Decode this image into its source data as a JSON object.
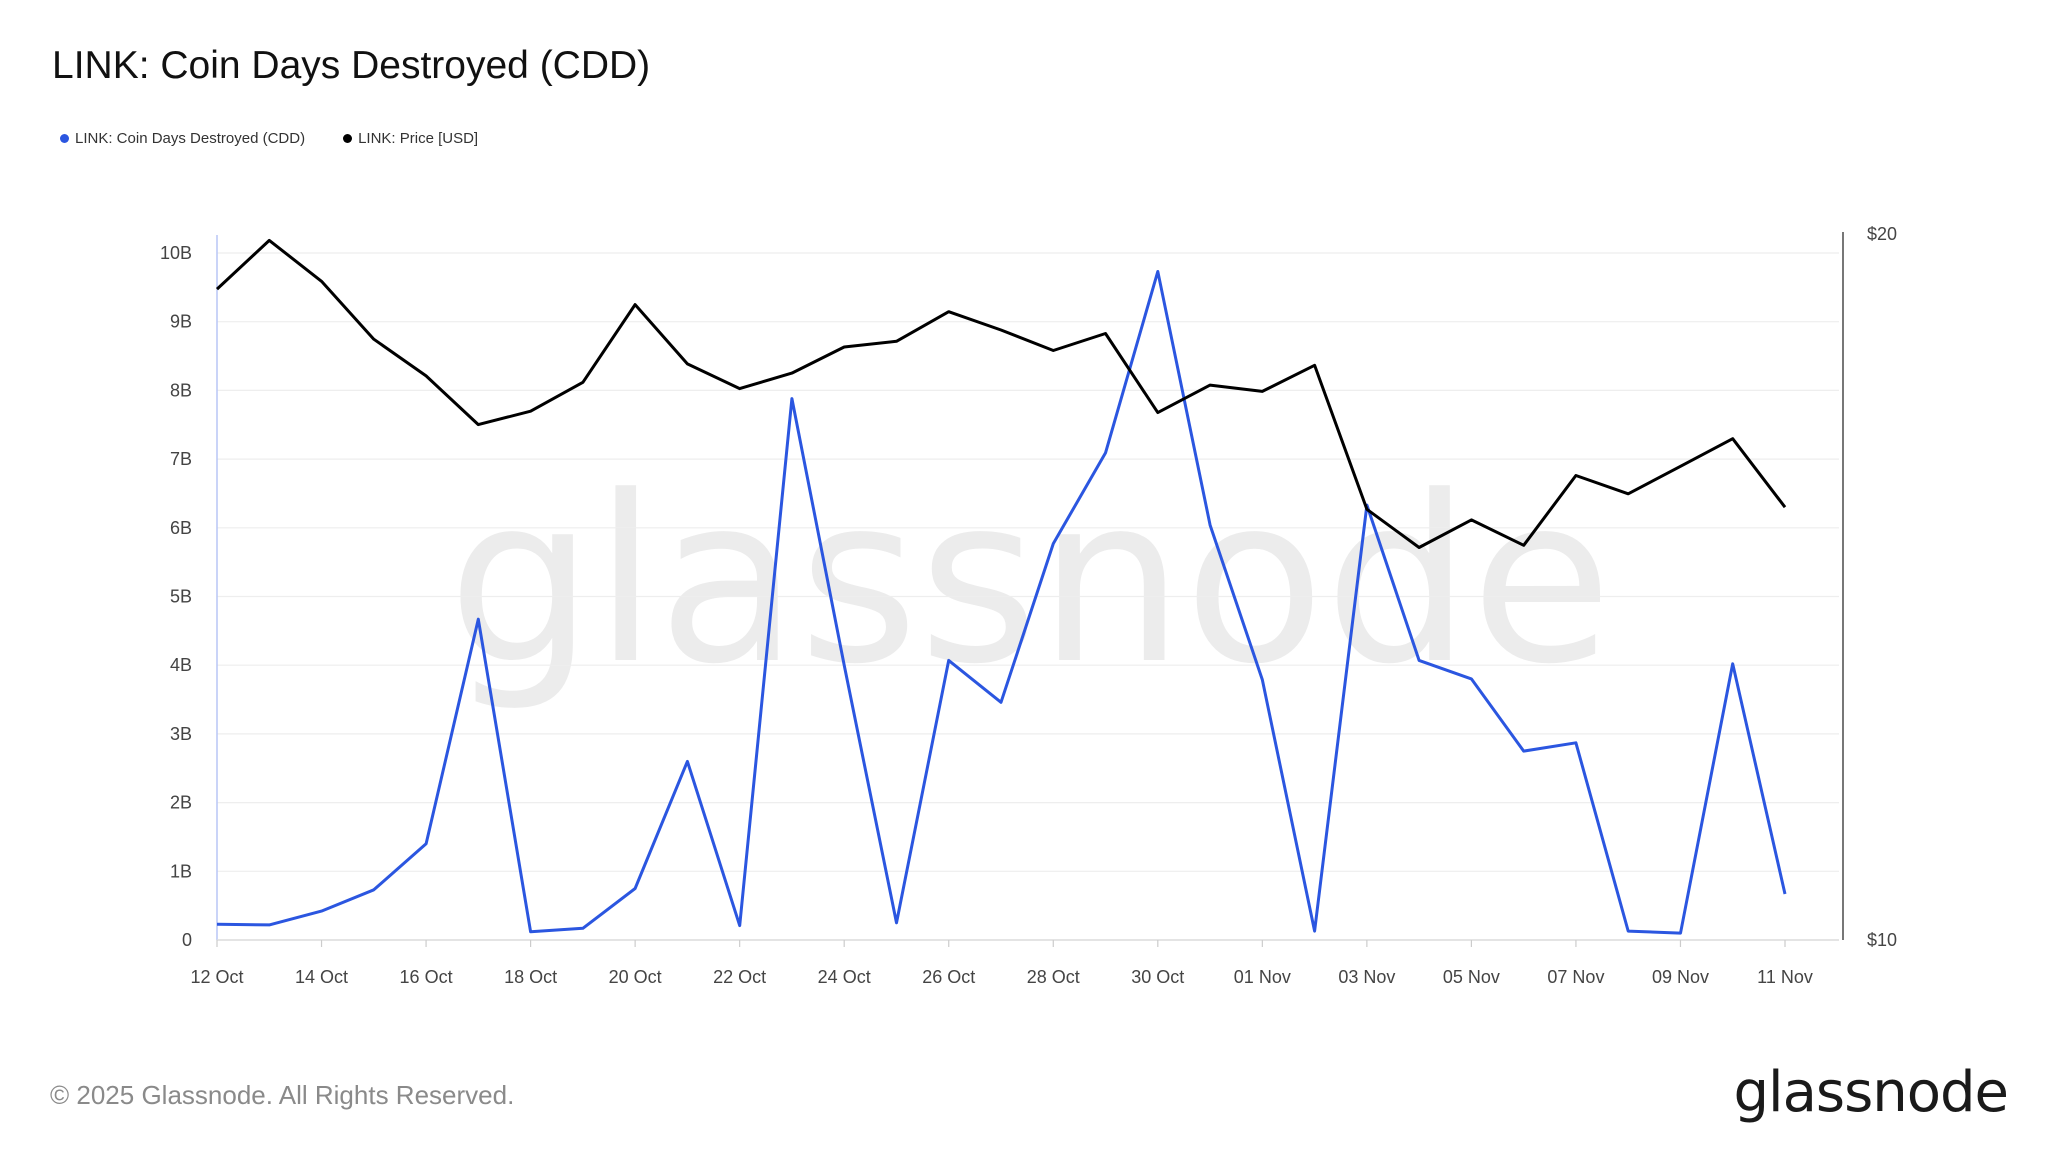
{
  "title": "LINK: Coin Days Destroyed (CDD)",
  "footer": "© 2025 Glassnode. All Rights Reserved.",
  "logo": "glassnode",
  "watermark": "glassnode",
  "chart_data": {
    "type": "line",
    "title": "LINK: Coin Days Destroyed (CDD)",
    "legend_placement": "top-left",
    "grid": true,
    "x": [
      "12 Oct",
      "13 Oct",
      "14 Oct",
      "15 Oct",
      "16 Oct",
      "17 Oct",
      "18 Oct",
      "19 Oct",
      "20 Oct",
      "21 Oct",
      "22 Oct",
      "23 Oct",
      "24 Oct",
      "25 Oct",
      "26 Oct",
      "27 Oct",
      "28 Oct",
      "29 Oct",
      "30 Oct",
      "31 Oct",
      "01 Nov",
      "02 Nov",
      "03 Nov",
      "04 Nov",
      "05 Nov",
      "06 Nov",
      "07 Nov",
      "08 Nov",
      "09 Nov",
      "10 Nov",
      "11 Nov"
    ],
    "x_tick_labels": [
      "12 Oct",
      "14 Oct",
      "16 Oct",
      "18 Oct",
      "20 Oct",
      "22 Oct",
      "24 Oct",
      "26 Oct",
      "28 Oct",
      "30 Oct",
      "01 Nov",
      "03 Nov",
      "05 Nov",
      "07 Nov",
      "09 Nov",
      "11 Nov"
    ],
    "y_left": {
      "ylim": [
        0,
        10
      ],
      "unit": "B",
      "tick_labels": [
        "0",
        "1B",
        "2B",
        "3B",
        "4B",
        "5B",
        "6B",
        "7B",
        "8B",
        "9B",
        "10B"
      ]
    },
    "y_right": {
      "ylim": [
        10,
        20
      ],
      "tick_labels": [
        "$10",
        "$20"
      ]
    },
    "series": [
      {
        "name": "LINK: Coin Days Destroyed (CDD)",
        "axis": "left",
        "color": "#2b56e0",
        "values": [
          0.23,
          0.22,
          0.42,
          0.73,
          1.4,
          4.67,
          0.12,
          0.17,
          0.75,
          2.6,
          0.21,
          7.88,
          4.0,
          0.25,
          4.07,
          3.46,
          5.77,
          7.09,
          9.73,
          6.04,
          3.79,
          0.13,
          6.33,
          4.07,
          3.8,
          2.75,
          2.87,
          0.13,
          0.1,
          4.02,
          0.67
        ]
      },
      {
        "name": "LINK: Price [USD]",
        "axis": "right",
        "color": "#000000",
        "values": [
          19.22,
          19.91,
          19.33,
          18.51,
          17.99,
          17.3,
          17.49,
          17.9,
          19.0,
          18.16,
          17.81,
          18.03,
          18.4,
          18.48,
          18.9,
          18.64,
          18.35,
          18.59,
          17.47,
          17.86,
          17.77,
          18.14,
          16.1,
          15.56,
          15.95,
          15.59,
          16.58,
          16.32,
          16.71,
          17.1,
          16.13
        ]
      }
    ]
  }
}
